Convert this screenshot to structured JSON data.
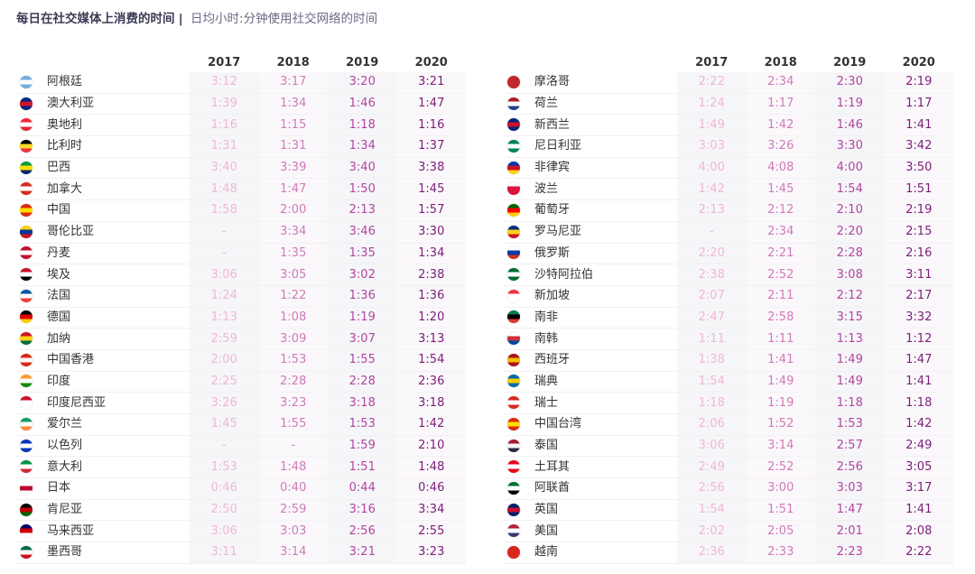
{
  "title": {
    "main": "每日在社交媒体上消费的时间",
    "separator": "|",
    "subtitle": "日均小时:分钟使用社交网络的时间"
  },
  "colors": {
    "y2017": "#f0b6d6",
    "y2018": "#d07ab8",
    "y2019": "#b244a0",
    "y2020": "#7a1e78"
  },
  "chart_data": [
    {
      "type": "table",
      "columns": [
        "2017",
        "2018",
        "2019",
        "2020"
      ],
      "rows": [
        {
          "country": "阿根廷",
          "flag": "flag-argentina",
          "flag_colors": [
            "#74acdf",
            "#ffffff",
            "#74acdf"
          ],
          "values": [
            "3:12",
            "3:17",
            "3:20",
            "3:21"
          ]
        },
        {
          "country": "澳大利亚",
          "flag": "flag-australia",
          "flag_colors": [
            "#00247d",
            "#cc142b",
            "#00247d"
          ],
          "values": [
            "1:39",
            "1:34",
            "1:46",
            "1:47"
          ]
        },
        {
          "country": "奥地利",
          "flag": "flag-austria",
          "flag_colors": [
            "#ed2939",
            "#ffffff",
            "#ed2939"
          ],
          "values": [
            "1:16",
            "1:15",
            "1:18",
            "1:16"
          ]
        },
        {
          "country": "比利时",
          "flag": "flag-belgium",
          "flag_colors": [
            "#000000",
            "#fdda24",
            "#ef3340"
          ],
          "values": [
            "1:31",
            "1:31",
            "1:34",
            "1:37"
          ]
        },
        {
          "country": "巴西",
          "flag": "flag-brazil",
          "flag_colors": [
            "#009c3b",
            "#ffdf00",
            "#002776"
          ],
          "values": [
            "3:40",
            "3:39",
            "3:40",
            "3:38"
          ]
        },
        {
          "country": "加拿大",
          "flag": "flag-canada",
          "flag_colors": [
            "#d52b1e",
            "#ffffff",
            "#d52b1e"
          ],
          "values": [
            "1:48",
            "1:47",
            "1:50",
            "1:45"
          ]
        },
        {
          "country": "中国",
          "flag": "flag-china",
          "flag_colors": [
            "#de2910",
            "#ffde00",
            "#de2910"
          ],
          "values": [
            "1:58",
            "2:00",
            "2:13",
            "1:57"
          ]
        },
        {
          "country": "哥伦比亚",
          "flag": "flag-colombia",
          "flag_colors": [
            "#fcd116",
            "#003893",
            "#ce1126"
          ],
          "values": [
            "-",
            "3:34",
            "3:46",
            "3:30"
          ]
        },
        {
          "country": "丹麦",
          "flag": "flag-denmark",
          "flag_colors": [
            "#c8102e",
            "#ffffff",
            "#c8102e"
          ],
          "values": [
            "-",
            "1:35",
            "1:35",
            "1:34"
          ]
        },
        {
          "country": "埃及",
          "flag": "flag-egypt",
          "flag_colors": [
            "#ce1126",
            "#ffffff",
            "#000000"
          ],
          "values": [
            "3:06",
            "3:05",
            "3:02",
            "2:38"
          ]
        },
        {
          "country": "法国",
          "flag": "flag-france",
          "flag_colors": [
            "#0055a4",
            "#ffffff",
            "#ef4135"
          ],
          "values": [
            "1:24",
            "1:22",
            "1:36",
            "1:36"
          ]
        },
        {
          "country": "德国",
          "flag": "flag-germany",
          "flag_colors": [
            "#000000",
            "#dd0000",
            "#ffce00"
          ],
          "values": [
            "1:13",
            "1:08",
            "1:19",
            "1:20"
          ]
        },
        {
          "country": "加纳",
          "flag": "flag-ghana",
          "flag_colors": [
            "#ce1126",
            "#fcd116",
            "#006b3f"
          ],
          "values": [
            "2:59",
            "3:09",
            "3:07",
            "3:13"
          ]
        },
        {
          "country": "中国香港",
          "flag": "flag-hong-kong",
          "flag_colors": [
            "#de2910",
            "#ffffff",
            "#de2910"
          ],
          "values": [
            "2:00",
            "1:53",
            "1:55",
            "1:54"
          ]
        },
        {
          "country": "印度",
          "flag": "flag-india",
          "flag_colors": [
            "#ff9933",
            "#ffffff",
            "#138808"
          ],
          "values": [
            "2:25",
            "2:28",
            "2:28",
            "2:36"
          ]
        },
        {
          "country": "印度尼西亚",
          "flag": "flag-indonesia",
          "flag_colors": [
            "#ce1126",
            "#ffffff",
            "#ffffff"
          ],
          "values": [
            "3:26",
            "3:23",
            "3:18",
            "3:18"
          ]
        },
        {
          "country": "爱尔兰",
          "flag": "flag-ireland",
          "flag_colors": [
            "#169b62",
            "#ffffff",
            "#ff883e"
          ],
          "values": [
            "1:45",
            "1:55",
            "1:53",
            "1:42"
          ]
        },
        {
          "country": "以色列",
          "flag": "flag-israel",
          "flag_colors": [
            "#0038b8",
            "#ffffff",
            "#0038b8"
          ],
          "values": [
            "-",
            "-",
            "1:59",
            "2:10"
          ]
        },
        {
          "country": "意大利",
          "flag": "flag-italy",
          "flag_colors": [
            "#009246",
            "#ffffff",
            "#ce2b37"
          ],
          "values": [
            "1:53",
            "1:48",
            "1:51",
            "1:48"
          ]
        },
        {
          "country": "日本",
          "flag": "flag-japan",
          "flag_colors": [
            "#ffffff",
            "#bc002d",
            "#ffffff"
          ],
          "values": [
            "0:46",
            "0:40",
            "0:44",
            "0:46"
          ]
        },
        {
          "country": "肯尼亚",
          "flag": "flag-kenya",
          "flag_colors": [
            "#000000",
            "#bb0000",
            "#006600"
          ],
          "values": [
            "2:50",
            "2:59",
            "3:16",
            "3:34"
          ]
        },
        {
          "country": "马来西亚",
          "flag": "flag-malaysia",
          "flag_colors": [
            "#010066",
            "#cc0001",
            "#ffffff"
          ],
          "values": [
            "3:06",
            "3:03",
            "2:56",
            "2:55"
          ]
        },
        {
          "country": "墨西哥",
          "flag": "flag-mexico",
          "flag_colors": [
            "#006847",
            "#ffffff",
            "#ce1126"
          ],
          "values": [
            "3:11",
            "3:14",
            "3:21",
            "3:23"
          ]
        }
      ]
    },
    {
      "type": "table",
      "columns": [
        "2017",
        "2018",
        "2019",
        "2020"
      ],
      "rows": [
        {
          "country": "摩洛哥",
          "flag": "flag-morocco",
          "flag_colors": [
            "#c1272d",
            "#c1272d",
            "#c1272d"
          ],
          "values": [
            "2:22",
            "2:34",
            "2:30",
            "2:19"
          ]
        },
        {
          "country": "荷兰",
          "flag": "flag-netherlands",
          "flag_colors": [
            "#ae1c28",
            "#ffffff",
            "#21468b"
          ],
          "values": [
            "1:24",
            "1:17",
            "1:19",
            "1:17"
          ]
        },
        {
          "country": "新西兰",
          "flag": "flag-new-zealand",
          "flag_colors": [
            "#00247d",
            "#cc142b",
            "#00247d"
          ],
          "values": [
            "1:49",
            "1:42",
            "1:46",
            "1:41"
          ]
        },
        {
          "country": "尼日利亚",
          "flag": "flag-nigeria",
          "flag_colors": [
            "#008751",
            "#ffffff",
            "#008751"
          ],
          "values": [
            "3:03",
            "3:26",
            "3:30",
            "3:42"
          ]
        },
        {
          "country": "非律宾",
          "flag": "flag-philippines",
          "flag_colors": [
            "#0038a8",
            "#ce1126",
            "#fcd116"
          ],
          "values": [
            "4:00",
            "4:08",
            "4:00",
            "3:50"
          ]
        },
        {
          "country": "波兰",
          "flag": "flag-poland",
          "flag_colors": [
            "#ffffff",
            "#dc143c",
            "#dc143c"
          ],
          "values": [
            "1:42",
            "1:45",
            "1:54",
            "1:51"
          ]
        },
        {
          "country": "葡萄牙",
          "flag": "flag-portugal",
          "flag_colors": [
            "#006600",
            "#ff0000",
            "#ffcc00"
          ],
          "values": [
            "2:13",
            "2:12",
            "2:10",
            "2:19"
          ]
        },
        {
          "country": "罗马尼亚",
          "flag": "flag-romania",
          "flag_colors": [
            "#002b7f",
            "#fcd116",
            "#ce1126"
          ],
          "values": [
            "-",
            "2:34",
            "2:20",
            "2:15"
          ]
        },
        {
          "country": "俄罗斯",
          "flag": "flag-russia",
          "flag_colors": [
            "#ffffff",
            "#0039a6",
            "#d52b1e"
          ],
          "values": [
            "2:20",
            "2:21",
            "2:28",
            "2:16"
          ]
        },
        {
          "country": "沙特阿拉伯",
          "flag": "flag-saudi-arabia",
          "flag_colors": [
            "#006c35",
            "#ffffff",
            "#006c35"
          ],
          "values": [
            "2:38",
            "2:52",
            "3:08",
            "3:11"
          ]
        },
        {
          "country": "新加坡",
          "flag": "flag-singapore",
          "flag_colors": [
            "#ef3340",
            "#ffffff",
            "#ffffff"
          ],
          "values": [
            "2:07",
            "2:11",
            "2:12",
            "2:17"
          ]
        },
        {
          "country": "南非",
          "flag": "flag-south-africa",
          "flag_colors": [
            "#007a4d",
            "#000000",
            "#de3831"
          ],
          "values": [
            "2:47",
            "2:58",
            "3:15",
            "3:32"
          ]
        },
        {
          "country": "南韩",
          "flag": "flag-south-korea",
          "flag_colors": [
            "#ffffff",
            "#cd2e3a",
            "#0047a0"
          ],
          "values": [
            "1:11",
            "1:11",
            "1:13",
            "1:12"
          ]
        },
        {
          "country": "西班牙",
          "flag": "flag-spain",
          "flag_colors": [
            "#aa151b",
            "#f1bf00",
            "#aa151b"
          ],
          "values": [
            "1:38",
            "1:41",
            "1:49",
            "1:47"
          ]
        },
        {
          "country": "瑞典",
          "flag": "flag-sweden",
          "flag_colors": [
            "#006aa7",
            "#fecc00",
            "#006aa7"
          ],
          "values": [
            "1:54",
            "1:49",
            "1:49",
            "1:41"
          ]
        },
        {
          "country": "瑞士",
          "flag": "flag-switzerland",
          "flag_colors": [
            "#d52b1e",
            "#ffffff",
            "#d52b1e"
          ],
          "values": [
            "1:18",
            "1:19",
            "1:18",
            "1:18"
          ]
        },
        {
          "country": "中国台湾",
          "flag": "flag-taiwan",
          "flag_colors": [
            "#de2910",
            "#ffde00",
            "#de2910"
          ],
          "values": [
            "2:06",
            "1:52",
            "1:53",
            "1:42"
          ]
        },
        {
          "country": "泰国",
          "flag": "flag-thailand",
          "flag_colors": [
            "#a51931",
            "#f4f5f8",
            "#2d2a4a"
          ],
          "values": [
            "3:06",
            "3:14",
            "2:57",
            "2:49"
          ]
        },
        {
          "country": "土耳其",
          "flag": "flag-turkey",
          "flag_colors": [
            "#e30a17",
            "#ffffff",
            "#e30a17"
          ],
          "values": [
            "2:49",
            "2:52",
            "2:56",
            "3:05"
          ]
        },
        {
          "country": "阿联酋",
          "flag": "flag-uae",
          "flag_colors": [
            "#00732f",
            "#ffffff",
            "#000000"
          ],
          "values": [
            "2:56",
            "3:00",
            "3:03",
            "3:17"
          ]
        },
        {
          "country": "英国",
          "flag": "flag-uk",
          "flag_colors": [
            "#012169",
            "#c8102e",
            "#012169"
          ],
          "values": [
            "1:54",
            "1:51",
            "1:47",
            "1:41"
          ]
        },
        {
          "country": "美国",
          "flag": "flag-usa",
          "flag_colors": [
            "#b22234",
            "#ffffff",
            "#3c3b6e"
          ],
          "values": [
            "2:02",
            "2:05",
            "2:01",
            "2:08"
          ]
        },
        {
          "country": "越南",
          "flag": "flag-vietnam",
          "flag_colors": [
            "#da251d",
            "#da251d",
            "#da251d"
          ],
          "values": [
            "2:36",
            "2:33",
            "2:23",
            "2:22"
          ]
        }
      ]
    }
  ]
}
